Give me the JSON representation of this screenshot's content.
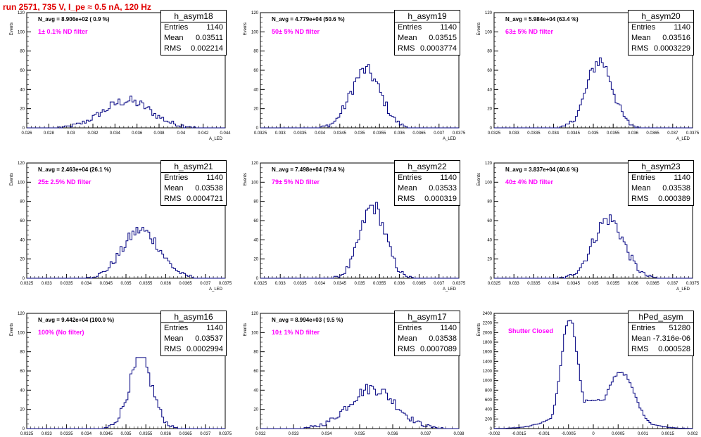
{
  "header": {
    "title": "run 2571,   735 V, I_pe ≈ 0.5 nA, 120 Hz"
  },
  "stat_labels": {
    "entries": "Entries",
    "mean": "Mean",
    "rms": "RMS"
  },
  "axis_labels": {
    "x": "A_LED",
    "y": "Events"
  },
  "colors": {
    "histogram": "#000080",
    "title": "#e00000",
    "annotation": "#ff00ff"
  },
  "chart_data": [
    {
      "type": "bar",
      "name": "h_asym18",
      "navg": "N_avg = 8.906e+02 ( 0.9 %)",
      "filter": "1± 0.1% ND filter",
      "entries": "1140",
      "mean": "0.03511",
      "rms": "0.002214",
      "xlim": [
        0.026,
        0.044
      ],
      "ylim": [
        0,
        120
      ],
      "xticks": [
        "0.026",
        "0.028",
        "0.03",
        "0.032",
        "0.034",
        "0.036",
        "0.038",
        "0.04",
        "0.042",
        "0.044"
      ],
      "yticks": [
        "0",
        "20",
        "40",
        "60",
        "80",
        "100",
        "120"
      ],
      "gauss": [
        0.03511,
        0.002214,
        28
      ]
    },
    {
      "type": "bar",
      "name": "h_asym19",
      "navg": "N_avg = 4.779e+04 (50.6 %)",
      "filter": "50± 5% ND filter",
      "entries": "1140",
      "mean": "0.03515",
      "rms": "0.0003774",
      "xlim": [
        0.0325,
        0.0375
      ],
      "ylim": [
        0,
        120
      ],
      "xticks": [
        "0.0325",
        "0.033",
        "0.0335",
        "0.034",
        "0.0345",
        "0.035",
        "0.0355",
        "0.036",
        "0.0365",
        "0.037",
        "0.0375"
      ],
      "yticks": [
        "0",
        "20",
        "40",
        "60",
        "80",
        "100",
        "120"
      ],
      "gauss": [
        0.03515,
        0.0003774,
        60
      ]
    },
    {
      "type": "bar",
      "name": "h_asym20",
      "navg": "N_avg = 5.984e+04 (63.4 %)",
      "filter": "63± 5% ND filter",
      "entries": "1140",
      "mean": "0.03516",
      "rms": "0.0003229",
      "xlim": [
        0.0325,
        0.0375
      ],
      "ylim": [
        0,
        120
      ],
      "xticks": [
        "0.0325",
        "0.033",
        "0.0335",
        "0.034",
        "0.0345",
        "0.035",
        "0.0355",
        "0.036",
        "0.0365",
        "0.037",
        "0.0375"
      ],
      "yticks": [
        "0",
        "20",
        "40",
        "60",
        "80",
        "100",
        "120"
      ],
      "gauss": [
        0.03516,
        0.0003229,
        70
      ]
    },
    {
      "type": "bar",
      "name": "h_asym21",
      "navg": "N_avg = 2.463e+04 (26.1 %)",
      "filter": "25± 2.5% ND filter",
      "entries": "1140",
      "mean": "0.03538",
      "rms": "0.0004721",
      "xlim": [
        0.0325,
        0.0375
      ],
      "ylim": [
        0,
        120
      ],
      "xticks": [
        "0.0325",
        "0.033",
        "0.0335",
        "0.034",
        "0.0345",
        "0.035",
        "0.0355",
        "0.036",
        "0.0365",
        "0.037",
        "0.0375"
      ],
      "yticks": [
        "0",
        "20",
        "40",
        "60",
        "80",
        "100",
        "120"
      ],
      "gauss": [
        0.03538,
        0.0004721,
        50
      ]
    },
    {
      "type": "bar",
      "name": "h_asym22",
      "navg": "N_avg = 7.498e+04 (79.4 %)",
      "filter": "79± 5% ND filter",
      "entries": "1140",
      "mean": "0.03533",
      "rms": "0.000319",
      "xlim": [
        0.0325,
        0.0375
      ],
      "ylim": [
        0,
        120
      ],
      "xticks": [
        "0.0325",
        "0.033",
        "0.0335",
        "0.034",
        "0.0345",
        "0.035",
        "0.0355",
        "0.036",
        "0.0365",
        "0.037",
        "0.0375"
      ],
      "yticks": [
        "0",
        "20",
        "40",
        "60",
        "80",
        "100",
        "120"
      ],
      "gauss": [
        0.03533,
        0.000319,
        75
      ]
    },
    {
      "type": "bar",
      "name": "h_asym23",
      "navg": "N_avg = 3.837e+04 (40.6 %)",
      "filter": "40± 4% ND filter",
      "entries": "1140",
      "mean": "0.03538",
      "rms": "0.000389",
      "xlim": [
        0.0325,
        0.0375
      ],
      "ylim": [
        0,
        120
      ],
      "xticks": [
        "0.0325",
        "0.033",
        "0.0335",
        "0.034",
        "0.0345",
        "0.035",
        "0.0355",
        "0.036",
        "0.0365",
        "0.037",
        "0.0375"
      ],
      "yticks": [
        "0",
        "20",
        "40",
        "60",
        "80",
        "100",
        "120"
      ],
      "gauss": [
        0.03538,
        0.000389,
        62
      ]
    },
    {
      "type": "bar",
      "name": "h_asym16",
      "navg": "N_avg = 9.442e+04 (100.0 %)",
      "filter": "100% (No filter)",
      "entries": "1140",
      "mean": "0.03537",
      "rms": "0.0002994",
      "xlim": [
        0.0325,
        0.0375
      ],
      "ylim": [
        0,
        120
      ],
      "xticks": [
        "0.0325",
        "0.033",
        "0.0335",
        "0.034",
        "0.0345",
        "0.035",
        "0.0355",
        "0.036",
        "0.0365",
        "0.037",
        "0.0375"
      ],
      "yticks": [
        "0",
        "20",
        "40",
        "60",
        "80",
        "100",
        "120"
      ],
      "gauss": [
        0.03537,
        0.0002994,
        70
      ]
    },
    {
      "type": "bar",
      "name": "h_asym17",
      "navg": "N_avg = 8.994e+03 ( 9.5 %)",
      "filter": "10± 1% ND filter",
      "entries": "1140",
      "mean": "0.03538",
      "rms": "0.0007089",
      "xlim": [
        0.032,
        0.038
      ],
      "ylim": [
        0,
        120
      ],
      "xticks": [
        "0.032",
        "0.033",
        "0.034",
        "0.035",
        "0.036",
        "0.037",
        "0.038"
      ],
      "yticks": [
        "0",
        "20",
        "40",
        "60",
        "80",
        "100",
        "120"
      ],
      "gauss": [
        0.03538,
        0.0007089,
        42
      ]
    },
    {
      "type": "bar",
      "name": "hPed_asym",
      "navg": "",
      "filter": "Shutter Closed",
      "entries": "51280",
      "mean": "-7.316e-06",
      "rms": "0.000528",
      "xlim": [
        -0.002,
        0.002
      ],
      "ylim": [
        0,
        2400
      ],
      "xticks": [
        "-0.002",
        "-0.0015",
        "-0.001",
        "-0.0005",
        "0",
        "0.0005",
        "0.001",
        "0.0015",
        "0.002"
      ],
      "yticks": [
        "0",
        "200",
        "400",
        "600",
        "800",
        "1000",
        "1200",
        "1400",
        "1600",
        "1800",
        "2000",
        "2200",
        "2400"
      ],
      "double": [
        [
          -0.00048,
          0.00017,
          2300
        ],
        [
          0.00055,
          0.00028,
          1180
        ]
      ]
    }
  ]
}
